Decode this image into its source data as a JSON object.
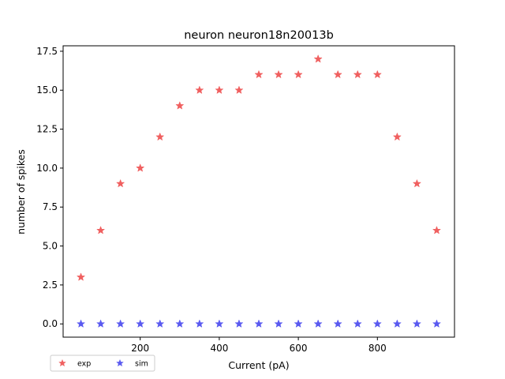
{
  "chart_data": {
    "type": "scatter",
    "title": "neuron neuron18n20013b",
    "xlabel": "Current (pA)",
    "ylabel": "number of spikes",
    "xlim": [
      5,
      995
    ],
    "ylim": [
      -0.85,
      17.85
    ],
    "xticks": [
      200,
      400,
      600,
      800
    ],
    "yticks": [
      0.0,
      2.5,
      5.0,
      7.5,
      10.0,
      12.5,
      15.0,
      17.5
    ],
    "ytick_labels": [
      "0.0",
      "2.5",
      "5.0",
      "7.5",
      "10.0",
      "12.5",
      "15.0",
      "17.5"
    ],
    "xtick_labels": [
      "200",
      "400",
      "600",
      "800"
    ],
    "marker": "star",
    "grid": false,
    "legend_position": "below-left",
    "series": [
      {
        "name": "exp",
        "color": "#f06060",
        "x": [
          50,
          100,
          150,
          200,
          250,
          300,
          350,
          400,
          450,
          500,
          550,
          600,
          650,
          700,
          750,
          800,
          850,
          900,
          950
        ],
        "y": [
          3,
          6,
          9,
          10,
          12,
          14,
          15,
          15,
          15,
          16,
          16,
          16,
          17,
          16,
          16,
          16,
          12,
          9,
          6
        ]
      },
      {
        "name": "sim",
        "color": "#5a5af0",
        "x": [
          50,
          100,
          150,
          200,
          250,
          300,
          350,
          400,
          450,
          500,
          550,
          600,
          650,
          700,
          750,
          800,
          850,
          900,
          950
        ],
        "y": [
          0,
          0,
          0,
          0,
          0,
          0,
          0,
          0,
          0,
          0,
          0,
          0,
          0,
          0,
          0,
          0,
          0,
          0,
          0
        ]
      }
    ]
  }
}
